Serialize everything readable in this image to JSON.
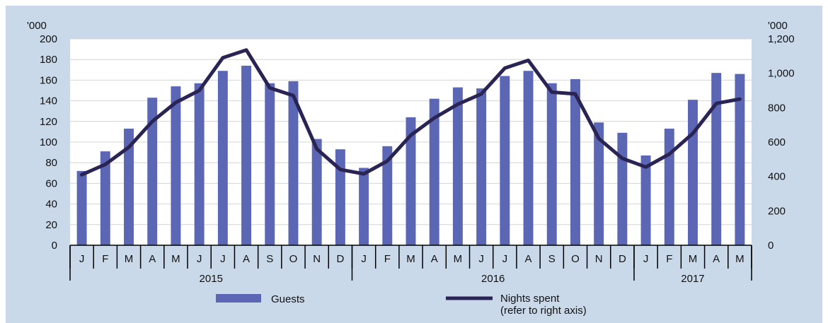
{
  "chart_data": {
    "type": "bar",
    "categories": [
      "J",
      "F",
      "M",
      "A",
      "M",
      "J",
      "J",
      "A",
      "S",
      "O",
      "N",
      "D",
      "J",
      "F",
      "M",
      "A",
      "M",
      "J",
      "J",
      "A",
      "S",
      "O",
      "N",
      "D",
      "J",
      "F",
      "M",
      "A",
      "M"
    ],
    "years": [
      {
        "label": "2015",
        "months": 12
      },
      {
        "label": "2016",
        "months": 12
      },
      {
        "label": "2017",
        "months": 5
      }
    ],
    "series": [
      {
        "name": "Guests",
        "kind": "bar",
        "axis": "left",
        "color": "#5b67b5",
        "values": [
          72,
          91,
          113,
          143,
          154,
          157,
          169,
          174,
          157,
          159,
          103,
          93,
          75,
          96,
          124,
          142,
          153,
          152,
          164,
          169,
          157,
          161,
          119,
          109,
          87,
          113,
          141,
          167,
          166
        ]
      },
      {
        "name": "Nights spent",
        "name_line2": "(refer to right axis)",
        "kind": "line",
        "axis": "right",
        "color": "#2a2454",
        "values": [
          410,
          470,
          570,
          720,
          830,
          900,
          1090,
          1135,
          915,
          870,
          560,
          440,
          415,
          490,
          640,
          740,
          820,
          880,
          1030,
          1075,
          890,
          880,
          620,
          505,
          455,
          530,
          650,
          825,
          850
        ]
      }
    ],
    "y_left": {
      "unit": "'000",
      "min": 0,
      "max": 200,
      "step": 20,
      "ticks": [
        "0",
        "20",
        "40",
        "60",
        "80",
        "100",
        "120",
        "140",
        "160",
        "180",
        "200"
      ]
    },
    "y_right": {
      "unit": "'000",
      "min": 0,
      "max": 1200,
      "step": 200,
      "ticks": [
        "0",
        "200",
        "400",
        "600",
        "800",
        "1,000",
        "1,200"
      ]
    },
    "grid": true,
    "legend_position": "bottom"
  }
}
